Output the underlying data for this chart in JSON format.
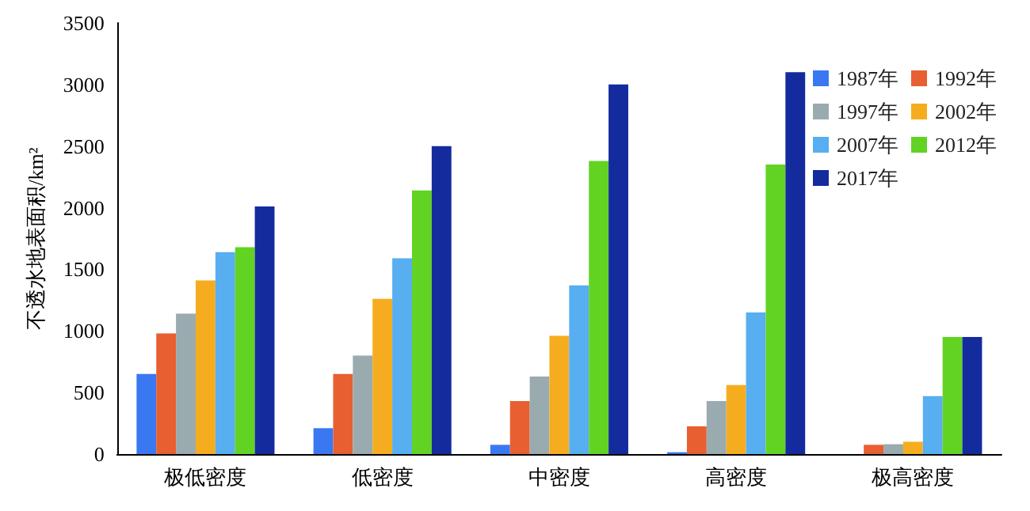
{
  "chart_data": {
    "type": "bar",
    "ylabel": "不透水地表面积/km²",
    "categories": [
      "极低密度",
      "低密度",
      "中密度",
      "高密度",
      "极高密度"
    ],
    "series": [
      {
        "name": "1987年",
        "color": "#3a78f2",
        "values": [
          650,
          210,
          75,
          15,
          0
        ]
      },
      {
        "name": "1992年",
        "color": "#e85f32",
        "values": [
          980,
          650,
          430,
          225,
          75
        ]
      },
      {
        "name": "1997年",
        "color": "#9aabb0",
        "values": [
          1140,
          800,
          630,
          430,
          80
        ]
      },
      {
        "name": "2002年",
        "color": "#f5ad1f",
        "values": [
          1410,
          1260,
          960,
          560,
          100
        ]
      },
      {
        "name": "2007年",
        "color": "#57aef0",
        "values": [
          1640,
          1590,
          1370,
          1150,
          470
        ]
      },
      {
        "name": "2012年",
        "color": "#62d323",
        "values": [
          1680,
          2140,
          2380,
          2350,
          950
        ]
      },
      {
        "name": "2017年",
        "color": "#142b9e",
        "values": [
          2010,
          2500,
          3000,
          3100,
          950
        ]
      }
    ],
    "ylim": [
      0,
      3500
    ],
    "yticks": [
      0,
      500,
      1000,
      1500,
      2000,
      2500,
      3000,
      3500
    ],
    "grid": false,
    "legend": "top right"
  }
}
